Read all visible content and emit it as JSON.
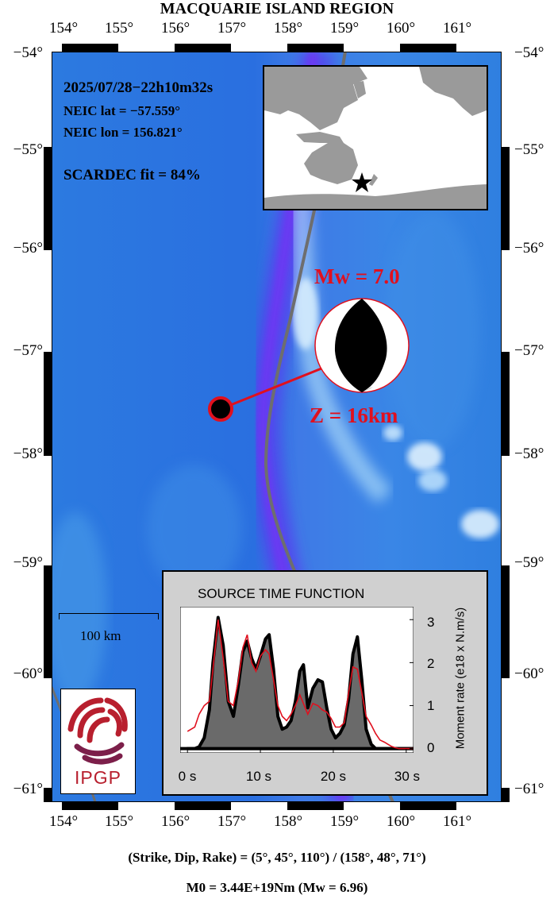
{
  "map": {
    "title": "MACQUARIE ISLAND REGION",
    "lon_ticks": [
      "154°",
      "155°",
      "156°",
      "157°",
      "158°",
      "159°",
      "160°",
      "161°"
    ],
    "lat_ticks": [
      "−54°",
      "−55°",
      "−56°",
      "−57°",
      "−58°",
      "−59°",
      "−60°",
      "−61°"
    ],
    "scale_bar_label": "100 km",
    "ocean_color": "#2f7fe0",
    "trench_color": "#5a3df0",
    "plate_boundary_color": "#6e6e6e"
  },
  "event": {
    "datetime": "2025/07/28−22h10m32s",
    "lat_text": "NEIC lat  = −57.559°",
    "lon_text": "NEIC lon = 156.821°",
    "fit_text": "SCARDEC fit = 84%",
    "magnitude_text": "Mw = 7.0",
    "depth_text": "Z =  16km",
    "epicenter": {
      "lon": 156.821,
      "lat": -57.559
    },
    "highlight_color": "#e0101e"
  },
  "mechanism_text": "(Strike, Dip, Rake) = (5°, 45°, 110°) / (158°, 48°, 71°)",
  "moment_text": "M0 = 3.44E+19Nm  (Mw = 6.96)",
  "logo": {
    "text": "IPGP",
    "color": "#b81f2e"
  },
  "stf": {
    "title": "SOURCE TIME FUNCTION",
    "ylabel": "Moment rate (e18 x N.m/s)",
    "x_ticks": [
      "0 s",
      "10 s",
      "20 s",
      "30 s"
    ],
    "y_ticks": [
      "0",
      "1",
      "2",
      "3"
    ]
  },
  "chart_data": {
    "type": "area",
    "title": "SOURCE TIME FUNCTION",
    "xlabel": "",
    "ylabel": "Moment rate (e18 x N.m/s)",
    "xlim": [
      -1,
      31
    ],
    "ylim": [
      -0.1,
      3.3
    ],
    "series": [
      {
        "x": [
          0,
          1,
          1.6,
          2.3,
          3,
          3.5,
          4.2,
          4.9,
          5.6,
          6.3,
          7,
          7.6,
          8.2,
          8.8,
          9.4,
          10,
          10.7,
          11.2,
          11.8,
          12.4,
          13,
          13.6,
          14.2,
          14.8,
          15.4,
          15.9,
          16.5,
          17.2,
          17.9,
          18.5,
          19.1,
          19.7,
          20.3,
          20.9,
          21.5,
          22.1,
          22.7,
          23.3,
          23.9,
          24.5,
          25.2,
          25.8,
          31
        ],
        "values": [
          0,
          0,
          0.04,
          0.25,
          0.9,
          2.0,
          3.05,
          2.4,
          1.1,
          0.75,
          1.5,
          2.25,
          2.5,
          2.1,
          1.85,
          2.15,
          2.55,
          2.65,
          1.85,
          0.75,
          0.45,
          0.5,
          0.65,
          1.1,
          1.8,
          1.95,
          0.95,
          1.4,
          1.6,
          1.55,
          0.95,
          0.45,
          0.25,
          0.35,
          0.55,
          1.15,
          2.2,
          2.6,
          1.6,
          0.45,
          0.1,
          0,
          0
        ]
      },
      {
        "x": [
          0,
          1,
          1.6,
          2.3,
          3,
          3.5,
          4.2,
          4.9,
          5.6,
          6.3,
          7,
          7.6,
          8.2,
          8.8,
          9.4,
          10,
          10.7,
          11.2,
          11.8,
          12.4,
          13,
          13.6,
          14.2,
          14.8,
          15.4,
          15.9,
          16.5,
          17.2,
          17.9,
          18.5,
          19.1,
          19.7,
          20.3,
          20.9,
          21.5,
          22.1,
          22.7,
          23.3,
          23.9,
          24.5,
          25.2,
          25.8,
          26.4,
          27,
          27.5,
          28,
          28.5,
          29,
          30,
          31
        ],
        "values": [
          0.4,
          0.5,
          0.8,
          1.0,
          1.1,
          1.85,
          3.0,
          2.1,
          1.1,
          1.0,
          1.6,
          2.35,
          2.65,
          2.0,
          1.8,
          2.15,
          2.3,
          2.2,
          1.6,
          1.0,
          0.75,
          0.65,
          0.8,
          1.0,
          1.25,
          1.05,
          0.8,
          1.05,
          1.0,
          0.9,
          0.85,
          0.7,
          0.5,
          0.5,
          0.6,
          1.3,
          1.9,
          1.85,
          1.3,
          0.75,
          0.55,
          0.35,
          0.2,
          0.15,
          0.1,
          0.05,
          0.02,
          0,
          0,
          0
        ]
      }
    ]
  }
}
